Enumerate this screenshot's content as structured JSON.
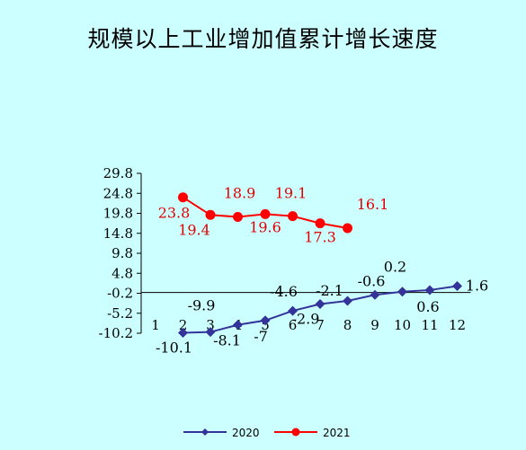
{
  "chart_data": {
    "type": "line",
    "title": "规模以上工业增加值累计增长速度",
    "x": [
      1,
      2,
      3,
      4,
      5,
      6,
      7,
      8,
      9,
      10,
      11,
      12
    ],
    "y_ticks": [
      "29.8",
      "24.8",
      "19.8",
      "14.8",
      "9.8",
      "4.8",
      "-0.2",
      "-5.2",
      "-10.2"
    ],
    "ylim": [
      -10.2,
      29.8
    ],
    "grid": false,
    "legend_position": "bottom",
    "series": [
      {
        "name": "2020",
        "color": "#333399",
        "marker": "diamond",
        "values": [
          null,
          -10.1,
          -9.9,
          -8.1,
          -7,
          -4.6,
          -2.9,
          -2.1,
          -0.6,
          0.2,
          0.6,
          1.6
        ],
        "labels": [
          "",
          "-10.1",
          "-9.9",
          "-8.1",
          "-7",
          "-4.6",
          "-2.9",
          "-2.1",
          "-0.6",
          "0.2",
          "0.6",
          "1.6"
        ]
      },
      {
        "name": "2021",
        "color": "#ff0000",
        "marker": "circle",
        "values": [
          null,
          23.8,
          19.4,
          18.9,
          19.6,
          19.1,
          17.3,
          16.1,
          null,
          null,
          null,
          null
        ],
        "labels": [
          "",
          "23.8",
          "19.4",
          "18.9",
          "19.6",
          "19.1",
          "17.3",
          "16.1",
          "",
          "",
          "",
          ""
        ]
      }
    ]
  }
}
